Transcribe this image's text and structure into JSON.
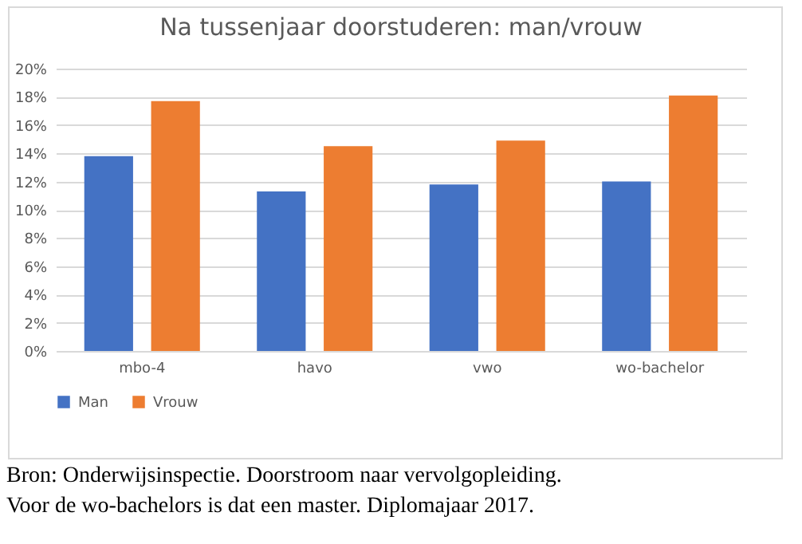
{
  "chart_data": {
    "type": "bar",
    "title": "Na tussenjaar doorstuderen: man/vrouw",
    "categories": [
      "mbo-4",
      "havo",
      "vwo",
      "wo-bachelor"
    ],
    "series": [
      {
        "name": "Man",
        "color": "#4472c4",
        "values": [
          13.8,
          11.3,
          11.8,
          12.0
        ]
      },
      {
        "name": "Vrouw",
        "color": "#ed7d31",
        "values": [
          17.7,
          14.5,
          14.9,
          18.1
        ]
      }
    ],
    "ylim": [
      0,
      20
    ],
    "yticks": [
      {
        "value": 0,
        "label": "0%"
      },
      {
        "value": 2,
        "label": "2%"
      },
      {
        "value": 4,
        "label": "4%"
      },
      {
        "value": 6,
        "label": "6%"
      },
      {
        "value": 8,
        "label": "8%"
      },
      {
        "value": 10,
        "label": "10%"
      },
      {
        "value": 12,
        "label": "12%"
      },
      {
        "value": 14,
        "label": "14%"
      },
      {
        "value": 16,
        "label": "16%"
      },
      {
        "value": 18,
        "label": "18%"
      },
      {
        "value": 20,
        "label": "20%"
      }
    ],
    "grid": "y",
    "legend": "bottom",
    "annotations": [
      "Bron: Onderwijsinspectie. Doorstroom naar vervolgopleiding.",
      "Voor de wo-bachelors is dat een master. Diplomajaar 2017."
    ]
  }
}
